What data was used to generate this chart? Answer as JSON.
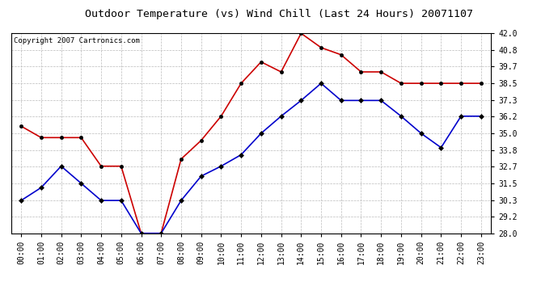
{
  "title": "Outdoor Temperature (vs) Wind Chill (Last 24 Hours) 20071107",
  "copyright_text": "Copyright 2007 Cartronics.com",
  "x_labels": [
    "00:00",
    "01:00",
    "02:00",
    "03:00",
    "04:00",
    "05:00",
    "06:00",
    "07:00",
    "08:00",
    "09:00",
    "10:00",
    "11:00",
    "12:00",
    "13:00",
    "14:00",
    "15:00",
    "16:00",
    "17:00",
    "18:00",
    "19:00",
    "20:00",
    "21:00",
    "22:00",
    "23:00"
  ],
  "temp_red": [
    35.5,
    34.7,
    34.7,
    34.7,
    32.7,
    32.7,
    28.0,
    28.0,
    33.2,
    34.5,
    36.2,
    38.5,
    40.0,
    39.3,
    42.0,
    41.0,
    40.5,
    39.3,
    39.3,
    38.5,
    38.5,
    38.5,
    38.5,
    38.5
  ],
  "temp_blue": [
    30.3,
    31.2,
    32.7,
    31.5,
    30.3,
    30.3,
    28.0,
    28.0,
    30.3,
    32.0,
    32.7,
    33.5,
    35.0,
    36.2,
    37.3,
    38.5,
    37.3,
    37.3,
    37.3,
    36.2,
    35.0,
    34.0,
    36.2,
    36.2
  ],
  "ylim": [
    28.0,
    42.0
  ],
  "yticks": [
    28.0,
    29.2,
    30.3,
    31.5,
    32.7,
    33.8,
    35.0,
    36.2,
    37.3,
    38.5,
    39.7,
    40.8,
    42.0
  ],
  "red_color": "#cc0000",
  "blue_color": "#0000cc",
  "bg_color": "#ffffff",
  "plot_bg_color": "#ffffff",
  "grid_color": "#bbbbbb",
  "title_fontsize": 9.5,
  "copyright_fontsize": 6.5,
  "tick_fontsize": 7,
  "ytick_fontsize": 7
}
